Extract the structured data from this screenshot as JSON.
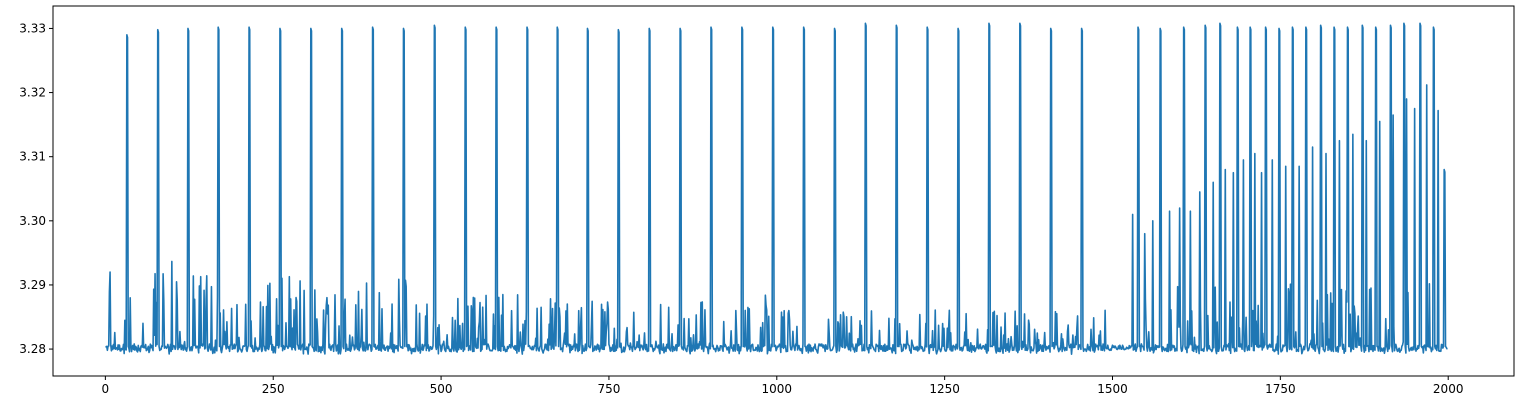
{
  "chart_data": {
    "type": "line",
    "title": "",
    "xlabel": "",
    "ylabel": "",
    "xlim": [
      -78,
      2098
    ],
    "ylim": [
      3.2758,
      3.3335
    ],
    "x_ticks": [
      0,
      250,
      500,
      750,
      1000,
      1250,
      1500,
      1750,
      2000
    ],
    "x_tick_labels": [
      "0",
      "250",
      "500",
      "750",
      "1000",
      "1250",
      "1500",
      "1750",
      "2000"
    ],
    "y_ticks": [
      3.28,
      3.29,
      3.3,
      3.31,
      3.32,
      3.33
    ],
    "y_tick_labels": [
      "3.28",
      "3.29",
      "3.30",
      "3.31",
      "3.32",
      "3.33"
    ],
    "grid": false,
    "legend": "none",
    "series": [
      {
        "color": "#1f77b4",
        "baseline": 3.2802,
        "x_start": 0,
        "x_end": 1999,
        "spike_high": 3.3302,
        "spike_positions": [
          32,
          78,
          123,
          168,
          214,
          260,
          306,
          352,
          398,
          444,
          490,
          536,
          582,
          628,
          673,
          718,
          764,
          810,
          856,
          902,
          948,
          994,
          1040,
          1086,
          1132,
          1178,
          1224,
          1270,
          1316,
          1362,
          1408,
          1454,
          1538,
          1571,
          1606,
          1638,
          1660,
          1686,
          1705,
          1728,
          1748,
          1768,
          1788,
          1810,
          1830,
          1850,
          1872,
          1892,
          1914,
          1934,
          1958,
          1978,
          1994
        ],
        "spike_peaks": [
          3.329,
          3.3298,
          3.33,
          3.3302,
          3.3302,
          3.33,
          3.33,
          3.33,
          3.3302,
          3.33,
          3.3305,
          3.3302,
          3.3302,
          3.3302,
          3.3302,
          3.33,
          3.3298,
          3.33,
          3.33,
          3.3302,
          3.3302,
          3.3302,
          3.3302,
          3.33,
          3.3308,
          3.3305,
          3.3302,
          3.33,
          3.3308,
          3.3308,
          3.33,
          3.33,
          3.3302,
          3.33,
          3.3302,
          3.3305,
          3.3308,
          3.3302,
          3.3302,
          3.3302,
          3.33,
          3.3302,
          3.3302,
          3.3305,
          3.3302,
          3.3302,
          3.3305,
          3.3302,
          3.3305,
          3.3308,
          3.3308,
          3.3302,
          3.308
        ],
        "secondary_spikes": [
          [
            1530,
            3.301
          ],
          [
            1548,
            3.298
          ],
          [
            1560,
            3.3
          ],
          [
            1585,
            3.3015
          ],
          [
            1600,
            3.302
          ],
          [
            1616,
            3.3015
          ],
          [
            1630,
            3.3045
          ],
          [
            1650,
            3.306
          ],
          [
            1668,
            3.308
          ],
          [
            1680,
            3.3075
          ],
          [
            1695,
            3.3095
          ],
          [
            1712,
            3.3105
          ],
          [
            1722,
            3.3075
          ],
          [
            1738,
            3.3095
          ],
          [
            1758,
            3.3085
          ],
          [
            1778,
            3.3085
          ],
          [
            1798,
            3.3115
          ],
          [
            1818,
            3.3105
          ],
          [
            1838,
            3.3125
          ],
          [
            1858,
            3.3135
          ],
          [
            1878,
            3.3125
          ],
          [
            1898,
            3.3155
          ],
          [
            1918,
            3.3165
          ],
          [
            1938,
            3.319
          ],
          [
            1950,
            3.3175
          ],
          [
            1968,
            3.3212
          ],
          [
            1985,
            3.3172
          ]
        ],
        "noise_segments": [
          {
            "x_from": 0,
            "x_to": 100,
            "level_high": 3.2952,
            "level_low": 3.2792
          },
          {
            "x_from": 100,
            "x_to": 500,
            "level_high": 3.2915,
            "level_low": 3.2792
          },
          {
            "x_from": 500,
            "x_to": 1000,
            "level_high": 3.2885,
            "level_low": 3.2792
          },
          {
            "x_from": 1000,
            "x_to": 1490,
            "level_high": 3.2862,
            "level_low": 3.2792
          },
          {
            "x_from": 1490,
            "x_to": 1532,
            "level_high": 3.2812,
            "level_low": 3.2798
          },
          {
            "x_from": 1532,
            "x_to": 1999,
            "level_high": 3.2902,
            "level_low": 3.2792
          }
        ]
      }
    ]
  }
}
